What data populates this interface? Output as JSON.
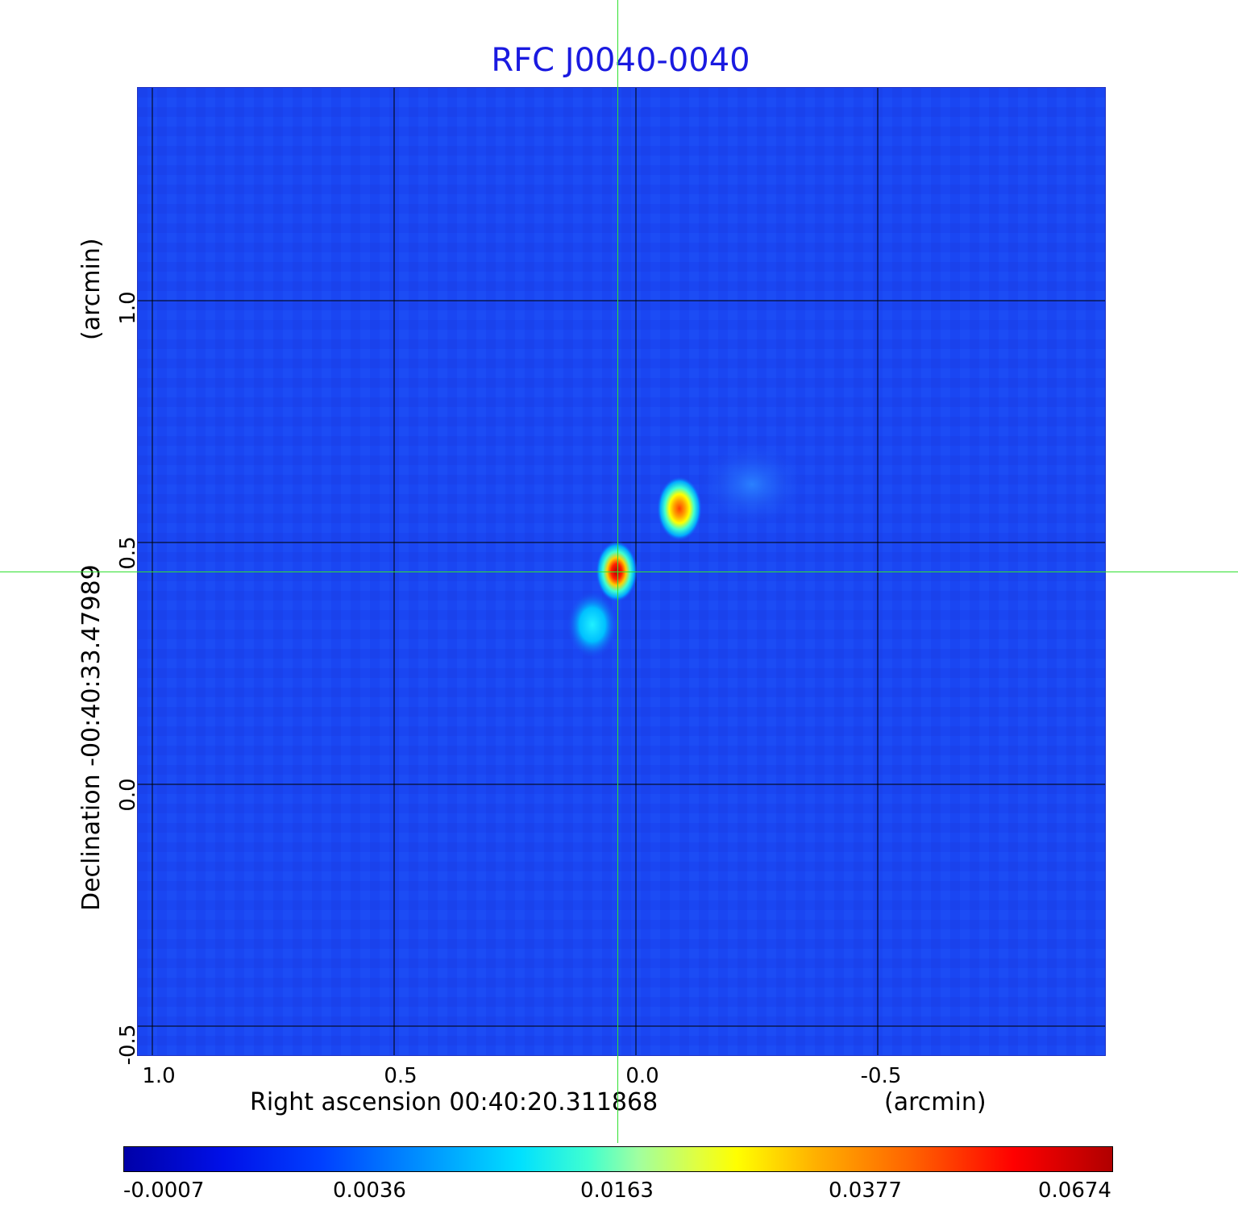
{
  "figure": {
    "title": "RFC J0040-0040",
    "x_axis": {
      "label": "Right ascension  00:40:20.311868",
      "unit": "(arcmin)",
      "ticks": [
        "1.0",
        "0.5",
        "0.0",
        "-0.5"
      ],
      "tick_values": [
        1.0,
        0.5,
        0.0,
        -0.5
      ],
      "range": [
        1.03,
        -0.97
      ]
    },
    "y_axis": {
      "label": "Declination  -00:40:33.47989",
      "unit": "(arcmin)",
      "ticks": [
        "1.0",
        "0.5",
        "0.0",
        "-0.5"
      ],
      "tick_values": [
        1.0,
        0.5,
        0.0,
        -0.5
      ],
      "range": [
        -0.56,
        1.44
      ]
    },
    "grid": true,
    "crosshair": {
      "x": 0.04,
      "y": 0.44,
      "color": "#30e030"
    },
    "colormap": "jet",
    "colorbar": {
      "ticks": [
        "-0.0007",
        "0.0036",
        "0.0163",
        "0.0377",
        "0.0674"
      ],
      "tick_values": [
        -0.0007,
        0.0036,
        0.0163,
        0.0377,
        0.0674
      ]
    },
    "sources": [
      {
        "x": 0.04,
        "y": 0.44,
        "peak": 0.0674
      },
      {
        "x": -0.09,
        "y": 0.57,
        "peak": 0.042
      },
      {
        "x": 0.09,
        "y": 0.33,
        "peak": 0.012
      },
      {
        "x": -0.24,
        "y": 0.62,
        "peak": 0.004
      }
    ]
  }
}
